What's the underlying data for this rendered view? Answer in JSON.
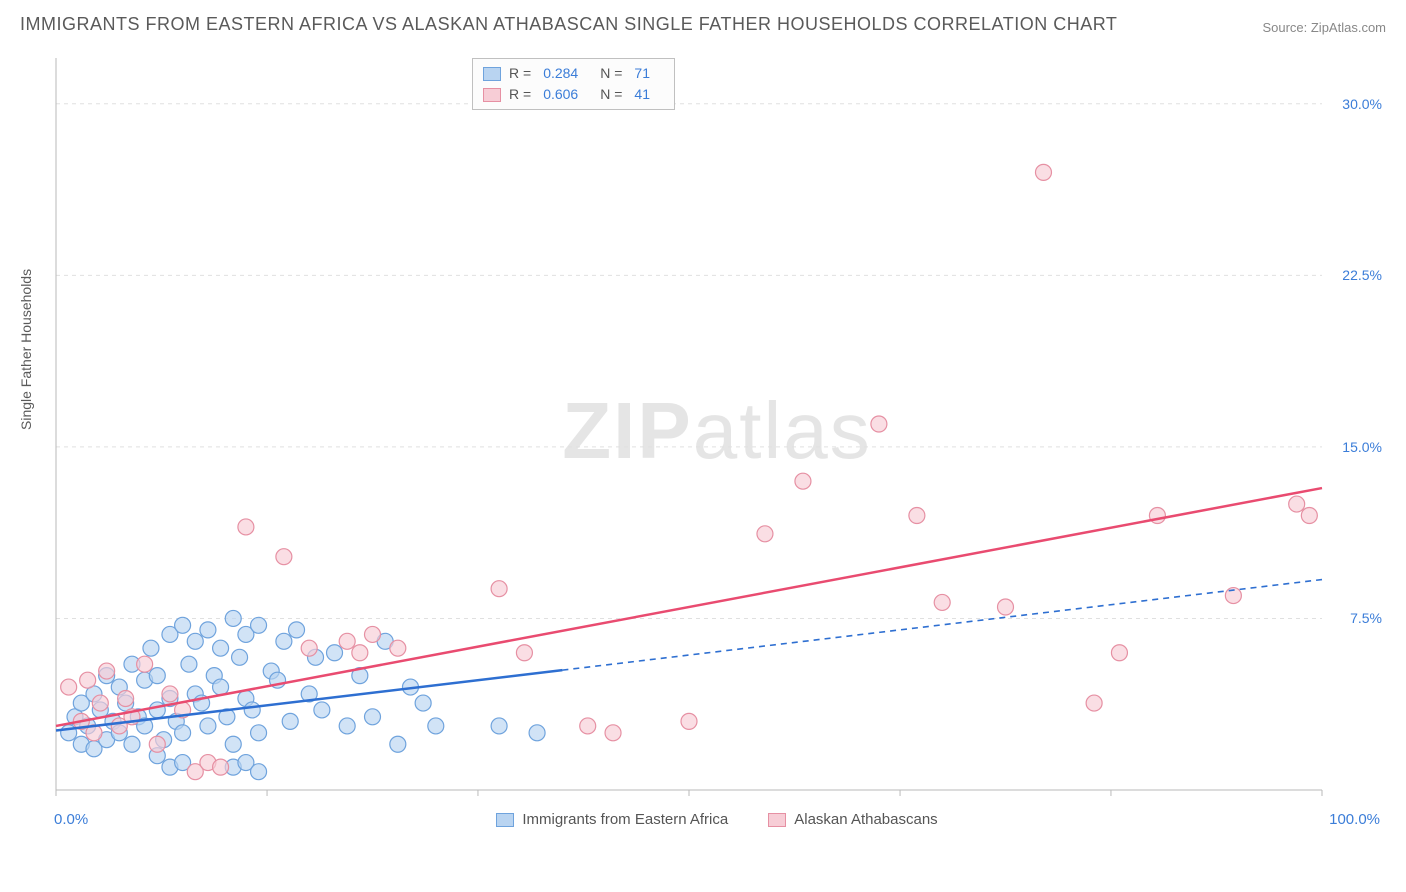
{
  "title": "IMMIGRANTS FROM EASTERN AFRICA VS ALASKAN ATHABASCAN SINGLE FATHER HOUSEHOLDS CORRELATION CHART",
  "source": "Source: ZipAtlas.com",
  "watermark_a": "ZIP",
  "watermark_b": "atlas",
  "y_axis_label": "Single Father Households",
  "chart": {
    "type": "scatter",
    "xlim": [
      0,
      100
    ],
    "ylim": [
      0,
      32
    ],
    "x_tick_positions": [
      0,
      16.67,
      33.33,
      50,
      66.67,
      83.33,
      100
    ],
    "y_gridlines": [
      7.5,
      15.0,
      22.5,
      30.0
    ],
    "y_tick_labels": [
      "7.5%",
      "15.0%",
      "22.5%",
      "30.0%"
    ],
    "x_min_label": "0.0%",
    "x_max_label": "100.0%",
    "background_color": "#ffffff",
    "grid_color": "#e0e0e0",
    "grid_dash": "4,4",
    "axis_line_color": "#bababa",
    "marker_radius": 8,
    "marker_stroke_width": 1.2,
    "regression_line_width": 2.5,
    "series": [
      {
        "name": "Immigrants from Eastern Africa",
        "fill": "#b9d4f1",
        "stroke": "#6fa3dd",
        "regression_color": "#2e6fd1",
        "regression_solid_until_x": 40,
        "R": "0.284",
        "N": "71",
        "reg_start": [
          0,
          2.6
        ],
        "reg_end": [
          100,
          9.2
        ],
        "points": [
          [
            1,
            2.5
          ],
          [
            1.5,
            3.2
          ],
          [
            2,
            2.0
          ],
          [
            2,
            3.8
          ],
          [
            2.5,
            2.8
          ],
          [
            3,
            4.2
          ],
          [
            3,
            1.8
          ],
          [
            3.5,
            3.5
          ],
          [
            4,
            2.2
          ],
          [
            4,
            5.0
          ],
          [
            4.5,
            3.0
          ],
          [
            5,
            4.5
          ],
          [
            5,
            2.5
          ],
          [
            5.5,
            3.8
          ],
          [
            6,
            2.0
          ],
          [
            6,
            5.5
          ],
          [
            6.5,
            3.2
          ],
          [
            7,
            4.8
          ],
          [
            7,
            2.8
          ],
          [
            7.5,
            6.2
          ],
          [
            8,
            3.5
          ],
          [
            8,
            5.0
          ],
          [
            8.5,
            2.2
          ],
          [
            9,
            6.8
          ],
          [
            9,
            4.0
          ],
          [
            9.5,
            3.0
          ],
          [
            10,
            7.2
          ],
          [
            10,
            2.5
          ],
          [
            10.5,
            5.5
          ],
          [
            11,
            4.2
          ],
          [
            11,
            6.5
          ],
          [
            11.5,
            3.8
          ],
          [
            12,
            7.0
          ],
          [
            12,
            2.8
          ],
          [
            12.5,
            5.0
          ],
          [
            13,
            4.5
          ],
          [
            13,
            6.2
          ],
          [
            13.5,
            3.2
          ],
          [
            14,
            7.5
          ],
          [
            14,
            2.0
          ],
          [
            14.5,
            5.8
          ],
          [
            15,
            4.0
          ],
          [
            15,
            6.8
          ],
          [
            15.5,
            3.5
          ],
          [
            16,
            7.2
          ],
          [
            16,
            2.5
          ],
          [
            17,
            5.2
          ],
          [
            17.5,
            4.8
          ],
          [
            18,
            6.5
          ],
          [
            18.5,
            3.0
          ],
          [
            19,
            7.0
          ],
          [
            20,
            4.2
          ],
          [
            20.5,
            5.8
          ],
          [
            21,
            3.5
          ],
          [
            22,
            6.0
          ],
          [
            23,
            2.8
          ],
          [
            24,
            5.0
          ],
          [
            25,
            3.2
          ],
          [
            26,
            6.5
          ],
          [
            27,
            2.0
          ],
          [
            28,
            4.5
          ],
          [
            29,
            3.8
          ],
          [
            30,
            2.8
          ],
          [
            14,
            1.0
          ],
          [
            15,
            1.2
          ],
          [
            16,
            0.8
          ],
          [
            8,
            1.5
          ],
          [
            9,
            1.0
          ],
          [
            10,
            1.2
          ],
          [
            35,
            2.8
          ],
          [
            38,
            2.5
          ]
        ]
      },
      {
        "name": "Alaskan Athabascans",
        "fill": "#f7cdd6",
        "stroke": "#e690a3",
        "regression_color": "#e94b70",
        "regression_solid_until_x": 100,
        "R": "0.606",
        "N": "41",
        "reg_start": [
          0,
          2.8
        ],
        "reg_end": [
          100,
          13.2
        ],
        "points": [
          [
            1,
            4.5
          ],
          [
            2,
            3.0
          ],
          [
            2.5,
            4.8
          ],
          [
            3,
            2.5
          ],
          [
            3.5,
            3.8
          ],
          [
            4,
            5.2
          ],
          [
            5,
            2.8
          ],
          [
            5.5,
            4.0
          ],
          [
            6,
            3.2
          ],
          [
            7,
            5.5
          ],
          [
            8,
            2.0
          ],
          [
            9,
            4.2
          ],
          [
            10,
            3.5
          ],
          [
            11,
            0.8
          ],
          [
            12,
            1.2
          ],
          [
            13,
            1.0
          ],
          [
            15,
            11.5
          ],
          [
            18,
            10.2
          ],
          [
            20,
            6.2
          ],
          [
            23,
            6.5
          ],
          [
            24,
            6.0
          ],
          [
            25,
            6.8
          ],
          [
            27,
            6.2
          ],
          [
            35,
            8.8
          ],
          [
            37,
            6.0
          ],
          [
            42,
            2.8
          ],
          [
            44,
            2.5
          ],
          [
            50,
            3.0
          ],
          [
            56,
            11.2
          ],
          [
            59,
            13.5
          ],
          [
            65,
            16.0
          ],
          [
            68,
            12.0
          ],
          [
            70,
            8.2
          ],
          [
            75,
            8.0
          ],
          [
            78,
            27.0
          ],
          [
            82,
            3.8
          ],
          [
            84,
            6.0
          ],
          [
            87,
            12.0
          ],
          [
            93,
            8.5
          ],
          [
            98,
            12.5
          ],
          [
            99,
            12.0
          ]
        ]
      }
    ]
  },
  "legend": {
    "series1_label": "Immigrants from Eastern Africa",
    "series2_label": "Alaskan Athabascans"
  }
}
